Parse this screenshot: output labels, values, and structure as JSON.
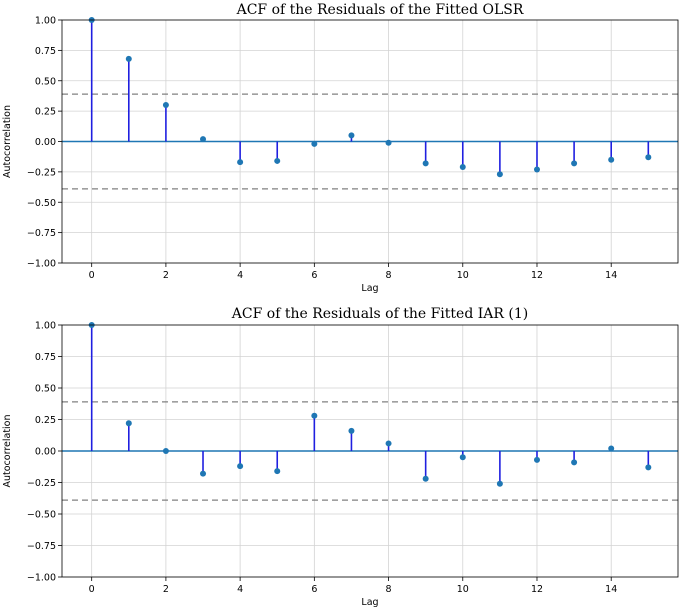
{
  "chart_data": [
    {
      "type": "stem",
      "title": "ACF of the Residuals of the Fitted OLSR",
      "xlabel": "Lag",
      "ylabel": "Autocorrelation",
      "xticks": [
        0,
        2,
        4,
        6,
        8,
        10,
        12,
        14
      ],
      "xtick_labels": [
        "0",
        "2",
        "4",
        "6",
        "8",
        "10",
        "12",
        "14"
      ],
      "yticks": [
        1.0,
        0.75,
        0.5,
        0.25,
        0.0,
        -0.25,
        -0.5,
        -0.75,
        -1.0
      ],
      "ytick_labels": [
        "1.00",
        "0.75",
        "0.50",
        "0.25",
        "0.00",
        "−0.25",
        "−0.50",
        "−0.75",
        "−1.00"
      ],
      "xlim": [
        -0.8,
        15.8
      ],
      "ylim": [
        -1.0,
        1.0
      ],
      "grid": true,
      "confidence_band": [
        -0.39,
        0.39
      ],
      "lags": [
        0,
        1,
        2,
        3,
        4,
        5,
        6,
        7,
        8,
        9,
        10,
        11,
        12,
        13,
        14,
        15
      ],
      "values": [
        1.0,
        0.68,
        0.3,
        0.02,
        -0.17,
        -0.16,
        -0.02,
        0.05,
        -0.01,
        -0.18,
        -0.21,
        -0.27,
        -0.23,
        -0.18,
        -0.15,
        -0.13
      ],
      "colors": {
        "stem": "#1f1fe0",
        "marker": "#1f77b4",
        "zero_line": "#1f77b4",
        "confidence": "#808080",
        "grid": "#d3d3d3"
      }
    },
    {
      "type": "stem",
      "title": "ACF of the Residuals of the Fitted IAR (1)",
      "xlabel": "Lag",
      "ylabel": "Autocorrelation",
      "xticks": [
        0,
        2,
        4,
        6,
        8,
        10,
        12,
        14
      ],
      "xtick_labels": [
        "0",
        "2",
        "4",
        "6",
        "8",
        "10",
        "12",
        "14"
      ],
      "yticks": [
        1.0,
        0.75,
        0.5,
        0.25,
        0.0,
        -0.25,
        -0.5,
        -0.75,
        -1.0
      ],
      "ytick_labels": [
        "1.00",
        "0.75",
        "0.50",
        "0.25",
        "0.00",
        "−0.25",
        "−0.50",
        "−0.75",
        "−1.00"
      ],
      "xlim": [
        -0.8,
        15.8
      ],
      "ylim": [
        -1.0,
        1.0
      ],
      "grid": true,
      "confidence_band": [
        -0.39,
        0.39
      ],
      "lags": [
        0,
        1,
        2,
        3,
        4,
        5,
        6,
        7,
        8,
        9,
        10,
        11,
        12,
        13,
        14,
        15
      ],
      "values": [
        1.0,
        0.22,
        0.0,
        -0.18,
        -0.12,
        -0.16,
        0.28,
        0.16,
        0.06,
        -0.22,
        -0.05,
        -0.26,
        -0.07,
        -0.09,
        0.02,
        -0.13
      ],
      "colors": {
        "stem": "#1f1fe0",
        "marker": "#1f77b4",
        "zero_line": "#1f77b4",
        "confidence": "#808080",
        "grid": "#d3d3d3"
      }
    }
  ]
}
